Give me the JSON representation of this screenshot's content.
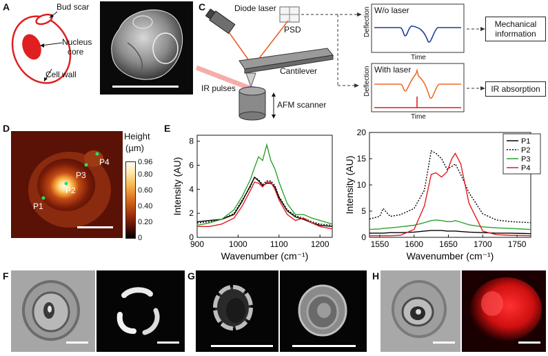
{
  "panel_letters": {
    "A": "A",
    "B": "B",
    "C": "C",
    "D": "D",
    "E": "E",
    "F": "F",
    "G": "G",
    "H": "H"
  },
  "panelA": {
    "bud_scar": "Bud scar",
    "nucleus": "Nucleus",
    "core": "core",
    "cell_wall": "Cell wall"
  },
  "panelC": {
    "diode_laser": "Diode laser",
    "psd": "PSD",
    "cantilever": "Cantilever",
    "ir_pulses": "IR pulses",
    "afm_scanner": "AFM scanner",
    "wo_laser": "W/o laser",
    "with_laser": "With laser",
    "deflection": "Deflection",
    "time": "Time",
    "mechanical_line1": "Mechanical",
    "mechanical_line2": "information",
    "ir_absorption": "IR absorption"
  },
  "panelD": {
    "points": [
      "P1",
      "P2",
      "P3",
      "P4"
    ],
    "colorbar_title_line1": "Height",
    "colorbar_title_line2": "(µm)",
    "colorbar_ticks": [
      "0.96",
      "0.80",
      "0.60",
      "0.40",
      "0.20",
      "0"
    ]
  },
  "chart_data": [
    {
      "type": "line",
      "xlabel": "Wavenumber (cm⁻¹)",
      "ylabel": "Intensity (AU)",
      "xlim": [
        900,
        1230
      ],
      "ylim": [
        0,
        8.5
      ],
      "xticks": [
        900,
        1000,
        1100,
        1200
      ],
      "yticks": [
        0,
        2,
        4,
        6,
        8
      ],
      "x": [
        900,
        930,
        960,
        990,
        1010,
        1030,
        1040,
        1050,
        1060,
        1070,
        1080,
        1090,
        1100,
        1120,
        1140,
        1160,
        1180,
        1200,
        1230
      ],
      "series": [
        {
          "name": "P1",
          "color": "#000000",
          "dash": false,
          "values": [
            1.3,
            1.4,
            1.5,
            1.9,
            3.0,
            4.3,
            5.0,
            4.7,
            4.3,
            4.5,
            4.5,
            4.2,
            3.3,
            2.2,
            1.7,
            1.5,
            1.2,
            1.0,
            0.9
          ]
        },
        {
          "name": "P2",
          "color": "#000000",
          "dash": true,
          "values": [
            1.2,
            1.3,
            1.5,
            2.0,
            3.1,
            4.2,
            5.0,
            4.8,
            4.4,
            4.7,
            4.7,
            4.3,
            3.4,
            2.3,
            1.8,
            1.6,
            1.3,
            1.1,
            1.0
          ]
        },
        {
          "name": "P3",
          "color": "#2ca02c",
          "dash": false,
          "values": [
            1.0,
            1.2,
            1.5,
            2.3,
            3.4,
            4.8,
            5.8,
            6.7,
            6.4,
            7.7,
            6.4,
            5.7,
            4.6,
            2.8,
            1.9,
            1.9,
            1.6,
            1.4,
            1.1
          ]
        },
        {
          "name": "P4",
          "color": "#e41a1c",
          "dash": false,
          "values": [
            0.9,
            0.9,
            1.1,
            1.6,
            2.6,
            3.9,
            4.6,
            4.5,
            4.2,
            4.6,
            4.6,
            4.0,
            3.1,
            1.9,
            1.4,
            1.6,
            1.2,
            0.9,
            0.7
          ]
        }
      ]
    },
    {
      "type": "line",
      "xlabel": "Wavenumber (cm⁻¹)",
      "ylabel": "Intensity (AU)",
      "xlim": [
        1535,
        1770
      ],
      "ylim": [
        0,
        20
      ],
      "xticks": [
        1550,
        1600,
        1650,
        1700,
        1750
      ],
      "yticks": [
        0,
        5,
        10,
        15,
        20
      ],
      "legend": "top-right",
      "x": [
        1535,
        1550,
        1555,
        1565,
        1580,
        1600,
        1615,
        1625,
        1632,
        1640,
        1648,
        1655,
        1660,
        1668,
        1680,
        1700,
        1720,
        1740,
        1770
      ],
      "series": [
        {
          "name": "P1",
          "color": "#000000",
          "dash": false,
          "values": [
            0.8,
            0.8,
            0.8,
            0.9,
            0.9,
            1.0,
            1.2,
            1.3,
            1.3,
            1.3,
            1.2,
            1.2,
            1.2,
            1.1,
            1.0,
            0.9,
            0.8,
            0.8,
            0.7
          ]
        },
        {
          "name": "P2",
          "color": "#000000",
          "dash": true,
          "values": [
            3.5,
            4.0,
            5.5,
            4.0,
            4.3,
            5.5,
            9.0,
            16.5,
            16.0,
            15.0,
            13.0,
            13.5,
            14.0,
            12.0,
            8.5,
            4.5,
            3.3,
            3.0,
            2.8
          ]
        },
        {
          "name": "P3",
          "color": "#2ca02c",
          "dash": false,
          "values": [
            1.5,
            1.6,
            1.7,
            1.8,
            2.0,
            2.3,
            2.8,
            3.2,
            3.3,
            3.2,
            3.0,
            3.0,
            3.2,
            2.9,
            2.4,
            2.0,
            1.8,
            1.7,
            1.5
          ]
        },
        {
          "name": "P4",
          "color": "#e41a1c",
          "dash": false,
          "values": [
            0.3,
            0.3,
            0.3,
            0.3,
            0.4,
            1.5,
            6.0,
            12.0,
            12.3,
            11.5,
            12.5,
            15.0,
            16.0,
            14.0,
            6.5,
            1.2,
            0.5,
            0.4,
            0.3
          ]
        }
      ]
    }
  ]
}
